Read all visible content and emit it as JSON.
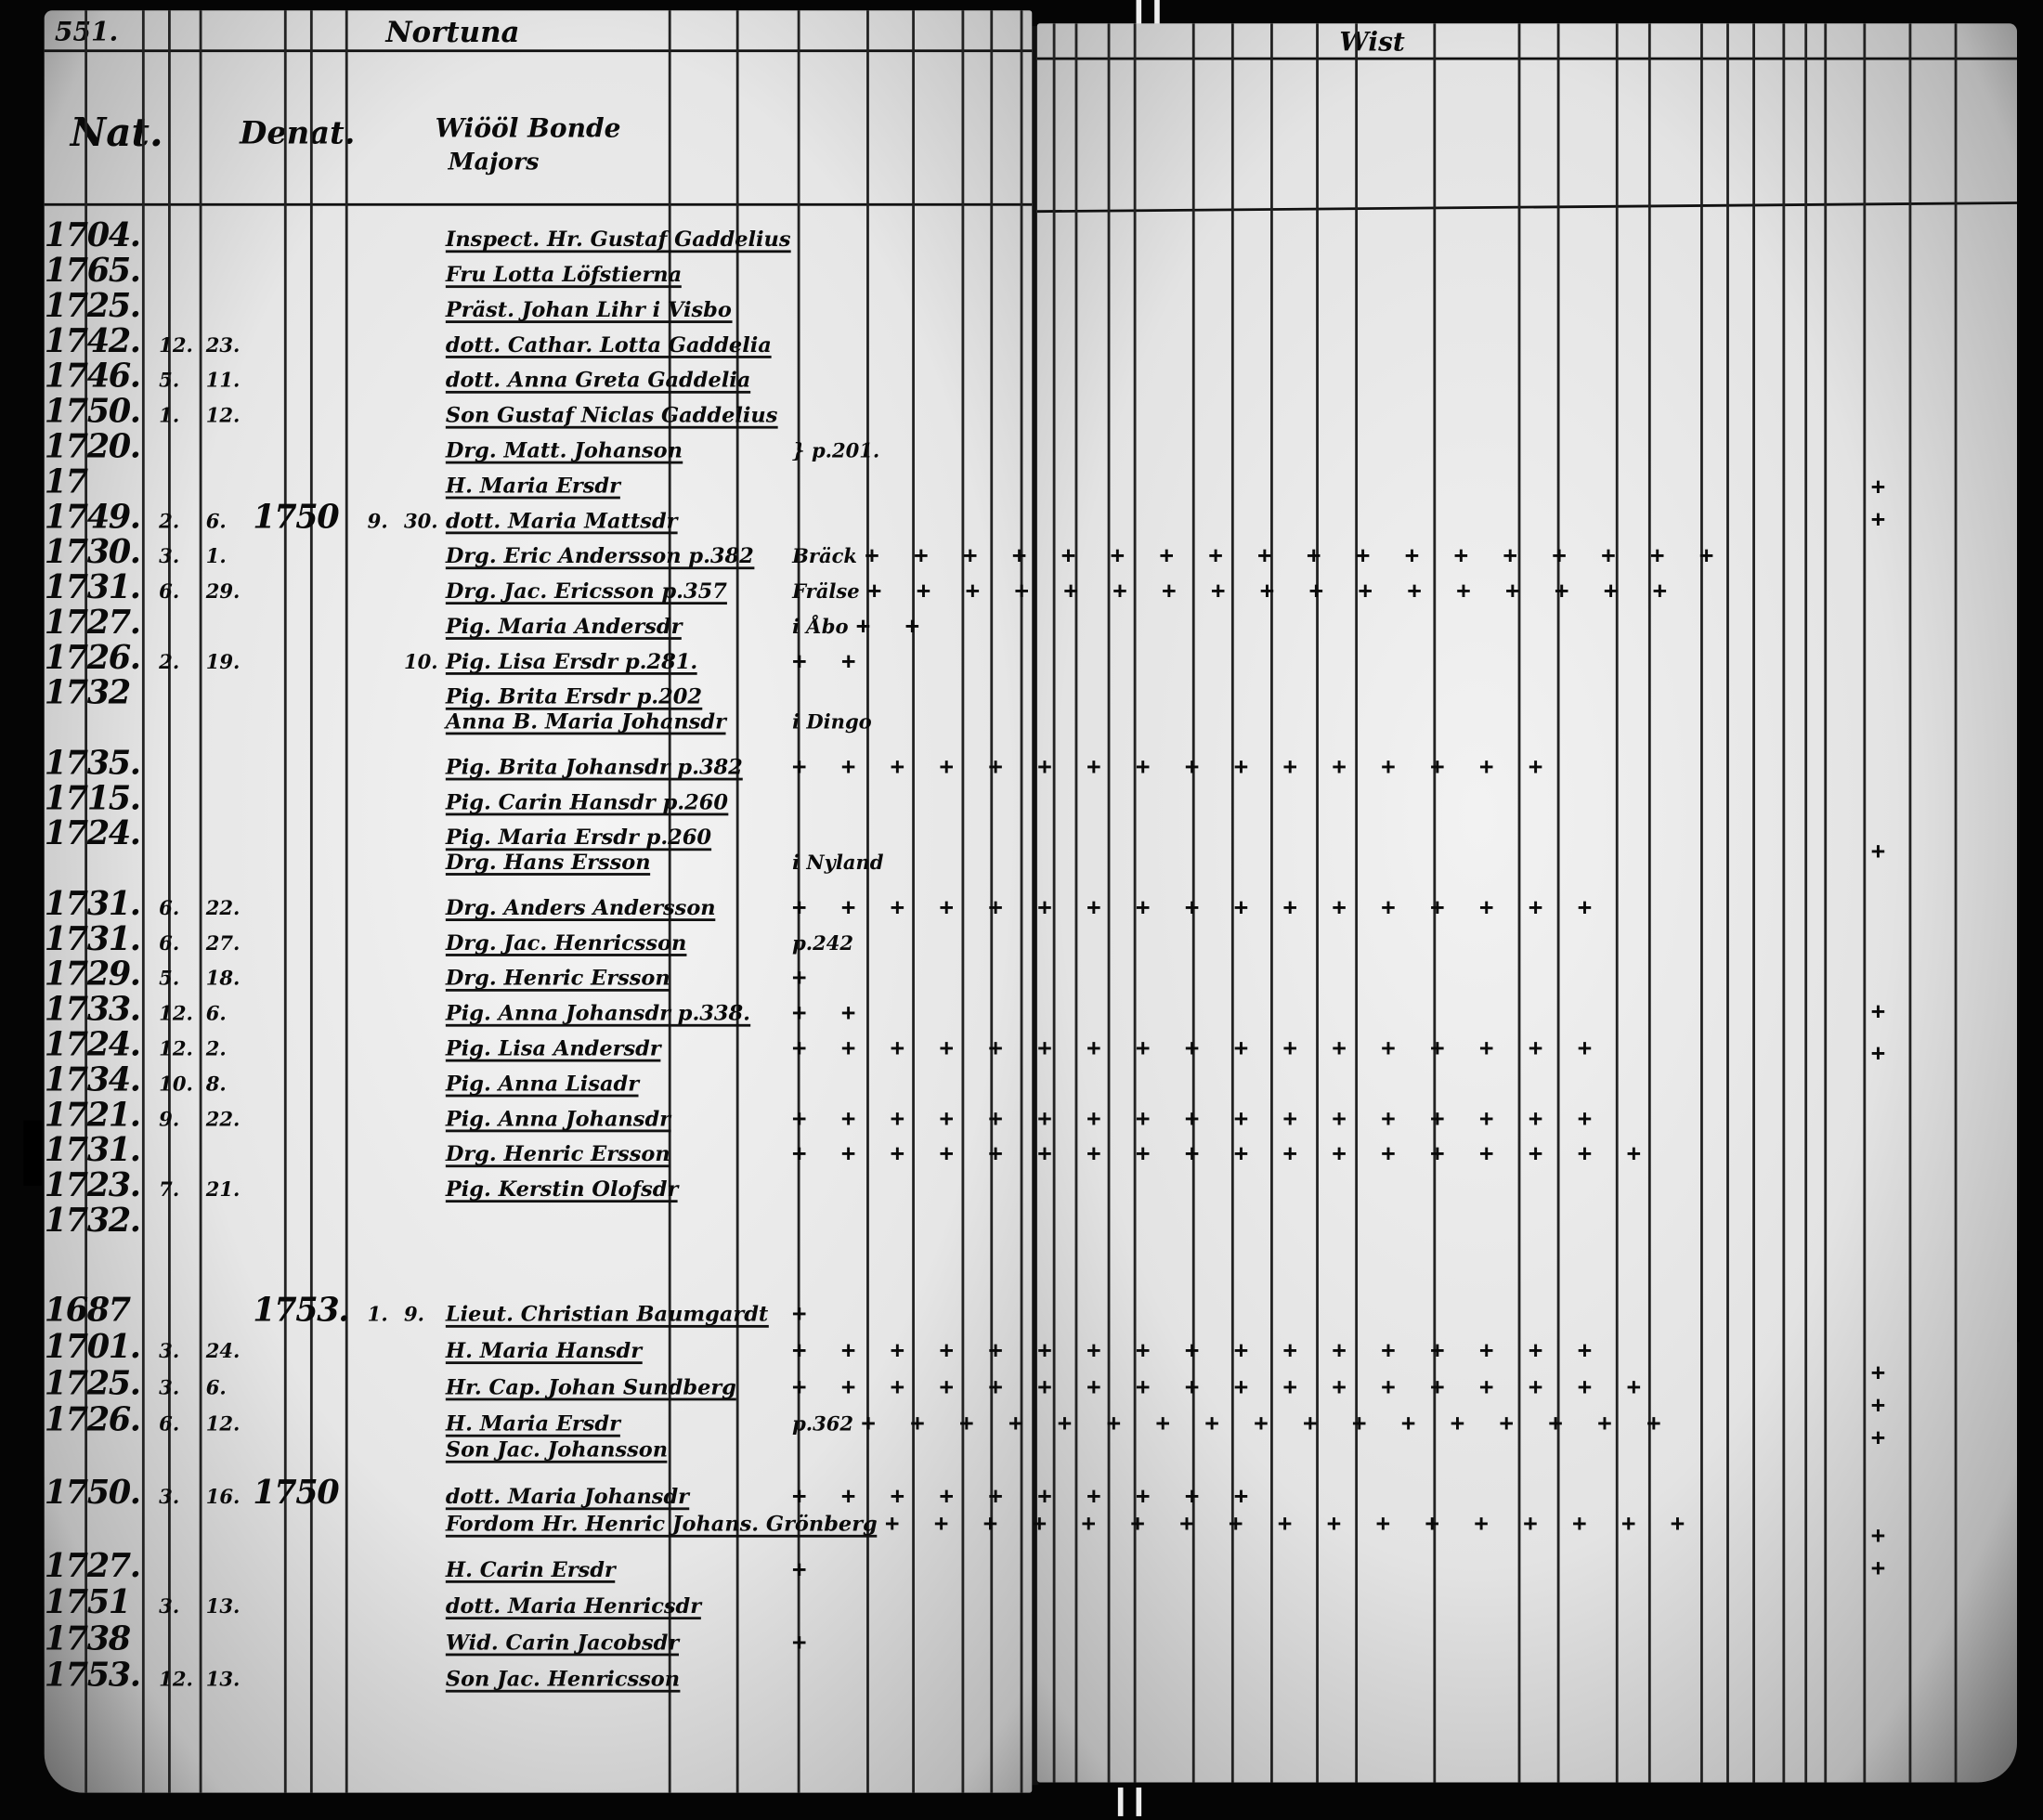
{
  "left_page": {
    "page_number": "551.",
    "parish_heading": "Nortuna",
    "columns": {
      "nat": "Nat.",
      "denat": "Denat.",
      "household_line1": "Wiööl Bonde",
      "household_line2": "Majors"
    },
    "entries": [
      {
        "year": "1704.",
        "month": "",
        "day": "",
        "name": "Inspect. Hr. Gustaf Gaddelius",
        "marks": ""
      },
      {
        "year": "1765.",
        "month": "",
        "day": "",
        "name": "Fru Lotta Löfstierna",
        "marks": ""
      },
      {
        "year": "1725.",
        "month": "",
        "day": "",
        "name": "Präst. Johan Lihr i Visbo",
        "marks": ""
      },
      {
        "year": "1742.",
        "month": "12.",
        "day": "23.",
        "name": "dott. Cathar. Lotta Gaddelia",
        "marks": ""
      },
      {
        "year": "1746.",
        "month": "5.",
        "day": "11.",
        "name": "dott. Anna Greta Gaddelia",
        "marks": ""
      },
      {
        "year": "1750.",
        "month": "1.",
        "day": "12.",
        "name": "Son Gustaf Niclas Gaddelius",
        "marks": ""
      },
      {
        "year": "1720.",
        "month": "",
        "day": "",
        "name": "Drg. Matt. Johanson",
        "note": "} p.201.",
        "marks": ""
      },
      {
        "year": "17",
        "month": "",
        "day": "",
        "name": "H. Maria Ersdr",
        "marks": ""
      },
      {
        "year": "1749.",
        "month": "2.",
        "day": "6.",
        "denat_year": "1750",
        "denat_month": "9.",
        "denat_day": "30.",
        "name": "dott. Maria Mattsdr",
        "marks": ""
      },
      {
        "year": "1730.",
        "month": "3.",
        "day": "1.",
        "name": "Drg. Eric Andersson p.382",
        "note": "Bräck",
        "marks": "+ + + + + + + + + + + + + + + + + +"
      },
      {
        "year": "1731.",
        "month": "6.",
        "day": "29.",
        "name": "Drg. Jac. Ericsson p.357",
        "note": "Frälse",
        "marks": "+ + + + + + + + + + + + + + + + +"
      },
      {
        "year": "1727.",
        "month": "",
        "day": "",
        "name": "Pig. Maria Andersdr",
        "note": "i Åbo",
        "marks": "+ +"
      },
      {
        "year": "1726.",
        "month": "2.",
        "day": "19.",
        "denat_day": "10.",
        "name": "Pig. Lisa Ersdr p.281.",
        "marks": "+ +"
      },
      {
        "year": "1732",
        "month": "",
        "day": "",
        "name": "Pig. Brita Ersdr p.202",
        "marks": ""
      },
      {
        "year": "",
        "month": "",
        "day": "",
        "name": "Anna B. Maria Johansdr",
        "note": "i Dingo",
        "marks": ""
      },
      {
        "year": "1735.",
        "month": "",
        "day": "",
        "name": "Pig. Brita Johansdr p.382",
        "marks": "+ + + + + + + + + + + + + + + +"
      },
      {
        "year": "1715.",
        "month": "",
        "day": "",
        "name": "Pig. Carin Hansdr p.260",
        "marks": ""
      },
      {
        "year": "1724.",
        "month": "",
        "day": "",
        "name": "Pig. Maria Ersdr p.260",
        "marks": ""
      },
      {
        "year": "",
        "month": "",
        "day": "",
        "name": "Drg. Hans Ersson",
        "note": "i Nyland",
        "marks": ""
      },
      {
        "year": "1731.",
        "month": "6.",
        "day": "22.",
        "name": "Drg. Anders Andersson",
        "marks": "+ + + + + + + + + + + + + + + + +"
      },
      {
        "year": "1731.",
        "month": "6.",
        "day": "27.",
        "name": "Drg. Jac. Henricsson",
        "note": "p.242",
        "marks": ""
      },
      {
        "year": "1729.",
        "month": "5.",
        "day": "18.",
        "name": "Drg. Henric Ersson",
        "marks": "+"
      },
      {
        "year": "1733.",
        "month": "12.",
        "day": "6.",
        "name": "Pig. Anna Johansdr p.338.",
        "marks": "+ +"
      },
      {
        "year": "1724.",
        "month": "12.",
        "day": "2.",
        "name": "Pig. Lisa Andersdr",
        "marks": "+ + + + + + + + + + + + + + + + +"
      },
      {
        "year": "1734.",
        "month": "10.",
        "day": "8.",
        "name": "Pig. Anna Lisadr",
        "marks": ""
      },
      {
        "year": "1721.",
        "month": "9.",
        "day": "22.",
        "name": "Pig. Anna Johansdr",
        "marks": "+ + + + + + + + + + + + + + + + +"
      },
      {
        "year": "1731.",
        "month": "",
        "day": "",
        "name": "Drg. Henric Ersson",
        "marks": "+ + + + + + + + + + + + + + + + + +"
      },
      {
        "year": "1723.",
        "month": "7.",
        "day": "21.",
        "name": "Pig. Kerstin Olofsdr",
        "marks": ""
      },
      {
        "year": "1732.",
        "month": "",
        "day": "",
        "name": "",
        "marks": ""
      }
    ],
    "entries_lower": [
      {
        "year": "1687",
        "month": "",
        "day": "",
        "denat_year": "1753.",
        "denat_month": "1.",
        "denat_day": "9.",
        "name": "Lieut. Christian Baumgardt",
        "marks": "+"
      },
      {
        "year": "1701.",
        "month": "3.",
        "day": "24.",
        "name": "H. Maria Hansdr",
        "marks": "+ + + + + + + + + + + + + + + + +"
      },
      {
        "year": "1725.",
        "month": "3.",
        "day": "6.",
        "name": "Hr. Cap. Johan Sundberg",
        "marks": "+ + + + + + + + + + + + + + + + + +"
      },
      {
        "year": "1726.",
        "month": "6.",
        "day": "12.",
        "name": "H. Maria Ersdr",
        "note": "p.362",
        "marks": "+ + + + + + + + + + + + + + + + +"
      },
      {
        "year": "",
        "month": "",
        "day": "",
        "name": "Son Jac. Johansson",
        "marks": ""
      },
      {
        "year": "1750.",
        "month": "3.",
        "day": "16.",
        "denat_year": "1750",
        "name": "dott. Maria Johansdr",
        "marks": "+ + + + + + + + + +"
      },
      {
        "year": "",
        "month": "",
        "day": "",
        "name": "Fordom Hr. Henric Johans. Grönberg",
        "marks": "+ + + + + + + + + + + + + + + + +"
      },
      {
        "year": "1727.",
        "month": "",
        "day": "",
        "name": "H. Carin Ersdr",
        "marks": "+"
      },
      {
        "year": "1751",
        "month": "3.",
        "day": "13.",
        "name": "dott. Maria Henricsdr",
        "marks": ""
      },
      {
        "year": "1738",
        "month": "",
        "day": "",
        "name": "Wid. Carin Jacobsdr",
        "marks": "+"
      },
      {
        "year": "1753.",
        "month": "12.",
        "day": "13.",
        "name": "Son Jac. Henricsson",
        "marks": ""
      }
    ]
  },
  "right_page": {
    "heading": "Wist",
    "margin_marks": [
      "+",
      "+",
      "+",
      "+",
      "+",
      "+",
      "+",
      "+",
      "+",
      "+"
    ]
  },
  "colors": {
    "ink": "#0a0a0a",
    "paper": "#ececec",
    "background": "#000000"
  }
}
